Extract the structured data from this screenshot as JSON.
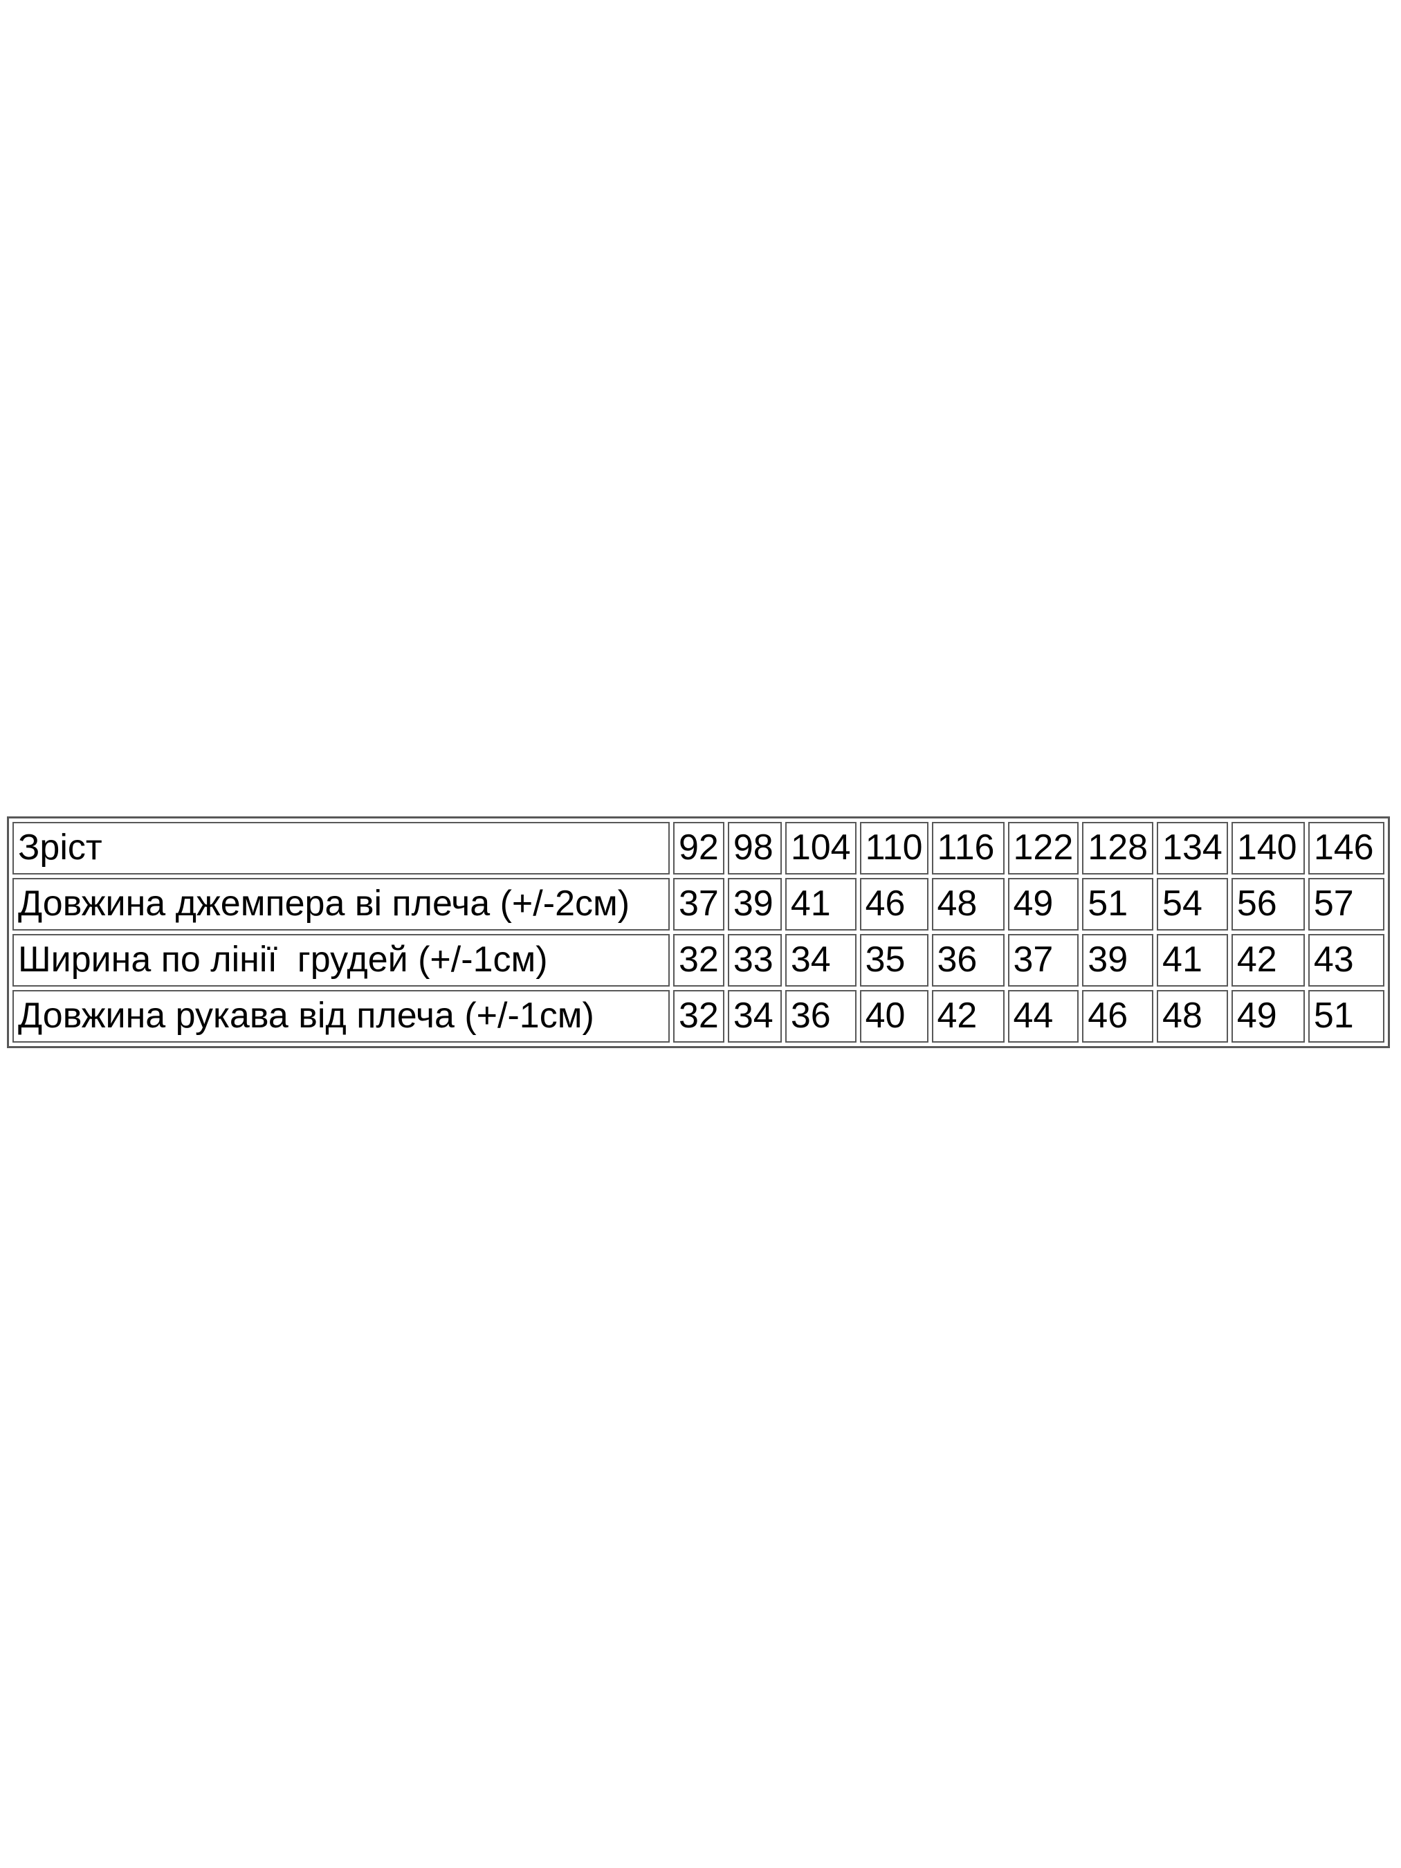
{
  "colors": {
    "background": "#ffffff",
    "table_border": "#585858",
    "text": "#000000"
  },
  "size_chart": {
    "rows": [
      {
        "label": "Зріст",
        "values": [
          "92",
          "98",
          "104",
          "110",
          "116",
          "122",
          "128",
          "134",
          "140",
          "146"
        ]
      },
      {
        "label": "Довжина джемпера ві плеча (+/-2см)",
        "values": [
          "37",
          "39",
          "41",
          "46",
          "48",
          "49",
          "51",
          "54",
          "56",
          "57"
        ]
      },
      {
        "label": "Ширина по лінії  грудей (+/-1см)",
        "values": [
          "32",
          "33",
          "34",
          "35",
          "36",
          "37",
          "39",
          "41",
          "42",
          "43"
        ]
      },
      {
        "label": "Довжина рукава від плеча (+/-1см)",
        "values": [
          "32",
          "34",
          "36",
          "40",
          "42",
          "44",
          "46",
          "48",
          "49",
          "51"
        ]
      }
    ]
  }
}
